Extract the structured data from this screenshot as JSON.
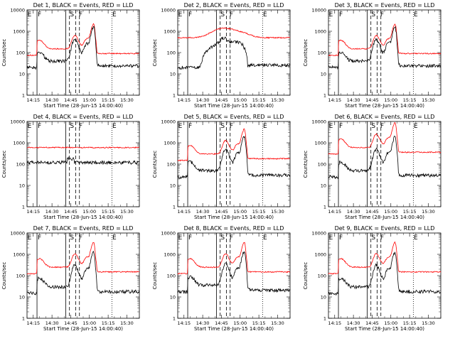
{
  "chart_data": {
    "type": "line",
    "rows": 3,
    "cols": 3,
    "common": {
      "ylabel": "Counts/sec",
      "xlabel": "Start Time (28-Jun-15 14:00:40)",
      "y_scale": "log",
      "ylim": [
        1,
        10000
      ],
      "y_ticks": [
        "1",
        "10",
        "100",
        "1000",
        "10000"
      ],
      "x_ticks": [
        "14:15",
        "14:30",
        "14:45",
        "15:00",
        "15:15",
        "15:30"
      ],
      "xlim_min": [
        10,
        100
      ],
      "grid": false,
      "title_suffix": "BLACK = Events, RED = LLD",
      "colors": {
        "events": "#000000",
        "lld": "#ff0000"
      },
      "markers": {
        "solid": [
          18,
          41
        ],
        "dashed": [
          44,
          49,
          52
        ],
        "dotted": [
          78
        ]
      },
      "marker_letters": [
        {
          "text": "E",
          "x": 12
        },
        {
          "text": "F",
          "x": 20
        },
        {
          "text": "S",
          "x": 46
        },
        {
          "text": "F",
          "x": 53
        },
        {
          "text": "E",
          "x": 80
        }
      ]
    },
    "panels": [
      {
        "title": "Det 1",
        "profile": "flare",
        "events_base": 40,
        "lld_base": 150,
        "peak_scale": 1.0
      },
      {
        "title": "Det 2",
        "profile": "det2",
        "events_base": 20,
        "lld_base": 500,
        "peak_scale": 1.0
      },
      {
        "title": "Det 3",
        "profile": "flare",
        "events_base": 40,
        "lld_base": 150,
        "peak_scale": 1.0
      },
      {
        "title": "Det 4",
        "profile": "det4",
        "events_base": 120,
        "lld_base": 600,
        "peak_scale": 1.0
      },
      {
        "title": "Det 5",
        "profile": "flare",
        "events_base": 50,
        "lld_base": 300,
        "peak_scale": 1.0
      },
      {
        "title": "Det 6",
        "profile": "flare",
        "events_base": 50,
        "lld_base": 600,
        "peak_scale": 1.0
      },
      {
        "title": "Det 7",
        "profile": "flare",
        "events_base": 30,
        "lld_base": 250,
        "peak_scale": 1.0
      },
      {
        "title": "Det 8",
        "profile": "flare",
        "events_base": 35,
        "lld_base": 250,
        "peak_scale": 1.0
      },
      {
        "title": "Det 9",
        "profile": "flare",
        "events_base": 30,
        "lld_base": 250,
        "peak_scale": 1.0
      }
    ]
  }
}
